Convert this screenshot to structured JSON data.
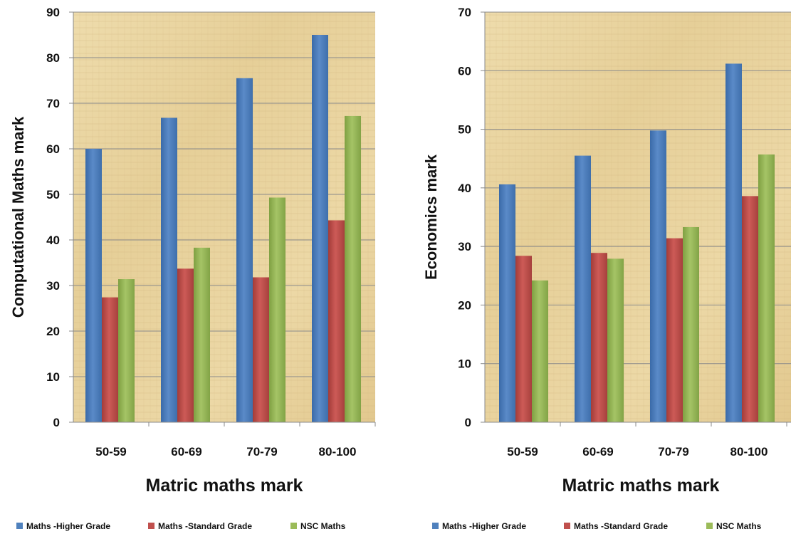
{
  "chart_data": [
    {
      "type": "bar",
      "title": "",
      "xlabel": "Matric maths mark",
      "ylabel": "Computational Maths mark",
      "categories": [
        "50-59",
        "60-69",
        "70-79",
        "80-100"
      ],
      "ylim": [
        0,
        90
      ],
      "yticks": [
        0,
        10,
        20,
        30,
        40,
        50,
        60,
        70,
        80,
        90
      ],
      "grid": true,
      "legend": "bottom",
      "series": [
        {
          "name": "Maths -Higher Grade",
          "color": "#4f81bd",
          "values": [
            60.0,
            66.8,
            75.5,
            85.0
          ]
        },
        {
          "name": "Maths -Standard Grade",
          "color": "#c0504d",
          "values": [
            27.4,
            33.7,
            31.8,
            44.3
          ]
        },
        {
          "name": "NSC Maths",
          "color": "#9bbb59",
          "values": [
            31.4,
            38.3,
            49.3,
            67.2
          ]
        }
      ]
    },
    {
      "type": "bar",
      "title": "",
      "xlabel": "Matric maths mark",
      "ylabel": "Economics mark",
      "categories": [
        "50-59",
        "60-69",
        "70-79",
        "80-100"
      ],
      "ylim": [
        0,
        70
      ],
      "yticks": [
        0,
        10,
        20,
        30,
        40,
        50,
        60,
        70
      ],
      "grid": true,
      "legend": "bottom",
      "series": [
        {
          "name": "Maths -Higher Grade",
          "color": "#4f81bd",
          "values": [
            40.6,
            45.5,
            49.8,
            61.2
          ]
        },
        {
          "name": "Maths -Standard Grade",
          "color": "#c0504d",
          "values": [
            28.4,
            28.9,
            31.4,
            38.6
          ]
        },
        {
          "name": "NSC Maths",
          "color": "#9bbb59",
          "values": [
            24.2,
            27.9,
            33.3,
            45.7
          ]
        }
      ]
    }
  ]
}
